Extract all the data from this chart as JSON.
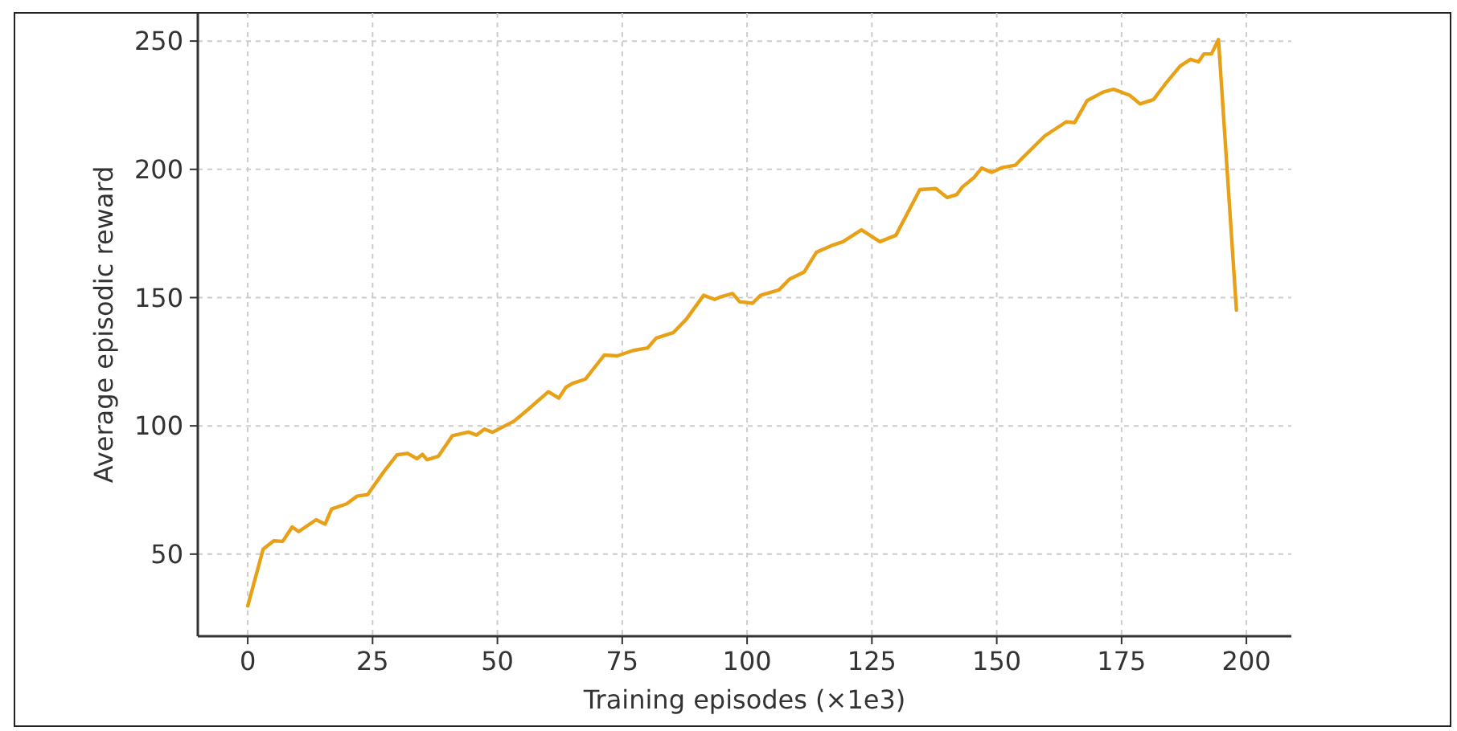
{
  "chart_data": {
    "type": "line",
    "xlabel": "Training episodes (×1e3)",
    "ylabel": "Average episodic reward",
    "xlim": [
      -10,
      209
    ],
    "ylim": [
      18,
      261
    ],
    "xticks": [
      0,
      25,
      50,
      75,
      100,
      125,
      150,
      175,
      200
    ],
    "yticks": [
      50,
      100,
      150,
      200,
      250
    ],
    "grid": true,
    "line_style": "solid",
    "marker": "none",
    "series": [
      {
        "color": "#e8a117",
        "x": [
          0,
          3.1,
          5.2,
          7,
          8.9,
          10.2,
          13.7,
          15.5,
          16.8,
          19.8,
          21.9,
          24,
          27.2,
          29.9,
          32,
          33.9,
          35,
          35.9,
          38.2,
          41,
          44.2,
          45.8,
          47.4,
          49,
          53.3,
          55.9,
          60.2,
          62.3,
          63.7,
          65,
          67.6,
          71.4,
          74,
          77.2,
          80.1,
          81.8,
          85.2,
          87.8,
          91.3,
          93.5,
          94.7,
          97.1,
          98.5,
          101.1,
          102.7,
          106.4,
          108.5,
          111.4,
          113.9,
          117.1,
          119.2,
          122.9,
          126.6,
          129.8,
          134.6,
          137.8,
          140.1,
          142,
          143.1,
          145.5,
          147,
          149,
          151.1,
          153.7,
          155.9,
          159.6,
          163.9,
          165.6,
          168.1,
          171.3,
          173.4,
          176.6,
          178.7,
          181.4,
          184,
          186.7,
          188.8,
          190.4,
          191.5,
          193,
          194.4,
          198
        ],
        "values": [
          29.8,
          52,
          55.2,
          55,
          60.6,
          58.8,
          63.4,
          61.7,
          67.6,
          69.6,
          72.6,
          73.2,
          82,
          88.7,
          89.3,
          87.2,
          88.9,
          86.8,
          88.2,
          96.2,
          97.6,
          96.4,
          98.7,
          97.5,
          101.8,
          106,
          113.3,
          110.8,
          115,
          116.5,
          118.2,
          127.6,
          127.3,
          129.4,
          130.4,
          134.2,
          136.3,
          141.5,
          150.9,
          149.3,
          150.3,
          151.6,
          148.4,
          147.8,
          150.9,
          153,
          157.2,
          159.9,
          167.7,
          170.4,
          171.8,
          176.4,
          171.8,
          174.3,
          192.1,
          192.5,
          189,
          190.2,
          193.1,
          196.9,
          200.5,
          198.8,
          200.7,
          201.6,
          205.9,
          213,
          218.5,
          218.2,
          226.8,
          230.1,
          231.2,
          228.9,
          225.5,
          227.2,
          233.9,
          240.2,
          242.9,
          241.9,
          245,
          245,
          250.6,
          145.1
        ]
      }
    ]
  }
}
